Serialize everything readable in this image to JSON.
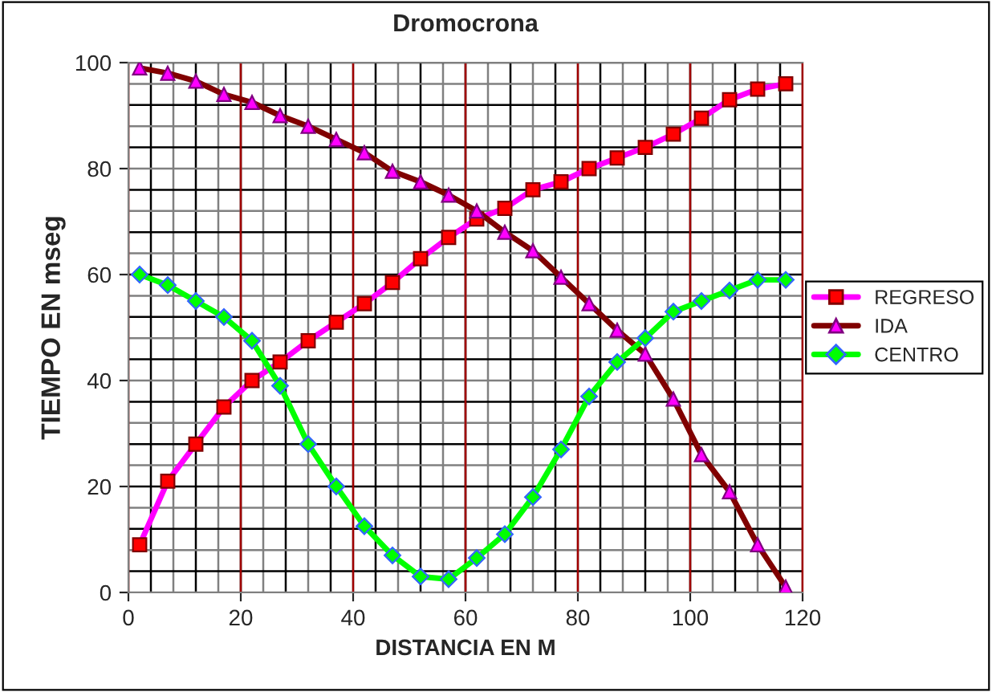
{
  "chart_data": {
    "type": "line",
    "title": "Dromocrona",
    "xlabel": "DISTANCIA EN M",
    "ylabel": "TIEMPO EN mseg",
    "x": [
      2,
      7,
      12,
      17,
      22,
      27,
      32,
      37,
      42,
      47,
      52,
      57,
      62,
      67,
      72,
      77,
      82,
      87,
      92,
      97,
      102,
      107,
      112,
      117
    ],
    "series": [
      {
        "name": "REGRESO",
        "color": "#ff00ff",
        "marker": "square",
        "values": [
          9,
          21,
          28,
          35,
          40,
          43.5,
          47.5,
          51,
          54.5,
          58.5,
          63,
          67,
          70.5,
          72.5,
          76,
          77.5,
          80,
          82,
          84,
          86.5,
          89.5,
          93,
          95,
          96
        ]
      },
      {
        "name": "IDA",
        "color": "#800000",
        "marker": "triangle",
        "values": [
          99,
          98,
          96.5,
          94,
          92.5,
          90,
          88,
          85.5,
          83,
          79.5,
          77.5,
          75,
          72,
          68,
          64.5,
          59.5,
          54.5,
          49.5,
          45,
          36.5,
          26,
          19,
          9,
          1
        ]
      },
      {
        "name": "CENTRO",
        "color": "#00ff00",
        "marker": "diamond",
        "values": [
          60,
          58,
          55,
          52,
          47.5,
          39,
          28,
          20,
          12.5,
          7,
          3,
          2.5,
          6.5,
          11,
          18,
          27,
          37,
          43.5,
          48,
          53,
          55,
          57,
          59,
          59
        ]
      }
    ],
    "xlim": [
      0,
      120
    ],
    "ylim": [
      0,
      100
    ],
    "xticks": [
      0,
      20,
      40,
      60,
      80,
      100,
      120
    ],
    "yticks": [
      0,
      20,
      40,
      60,
      80,
      100
    ],
    "grid": true,
    "legend": "right",
    "line_style": "solid"
  }
}
